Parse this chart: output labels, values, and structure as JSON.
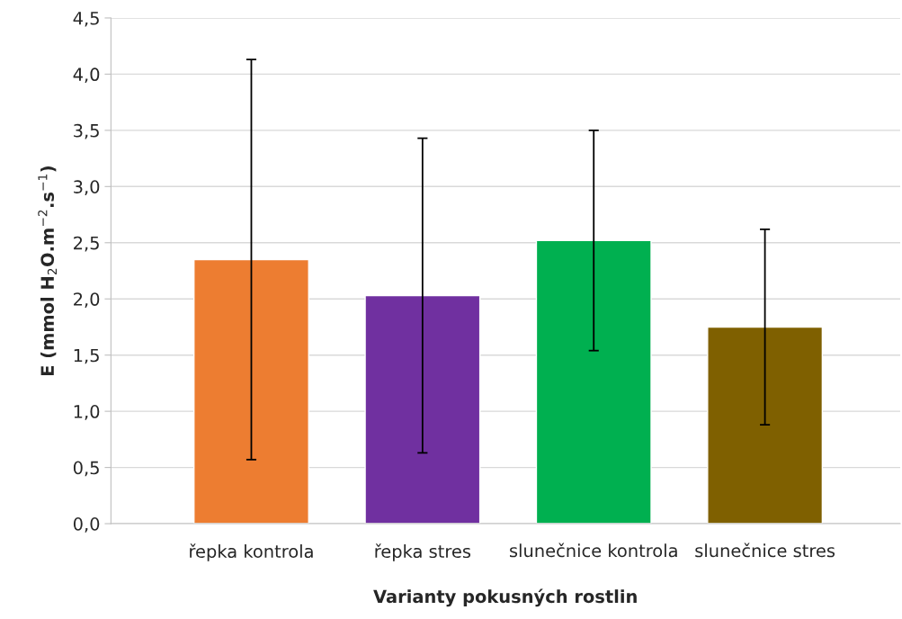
{
  "chart_data": {
    "type": "bar",
    "xlabel": "Varianty pokusných rostlin",
    "ylabel": "E (mmol H$_{2}$O.m$^{−2}$.s$^{−1}$)",
    "categories": [
      "řepka kontrola",
      "řepka stres",
      "slunečnice kontrola",
      "slunečnice stres"
    ],
    "values": [
      2.35,
      2.03,
      2.52,
      1.75
    ],
    "errors": [
      1.78,
      1.4,
      0.98,
      0.87
    ],
    "colors": [
      "#ed7d31",
      "#7030a0",
      "#00b050",
      "#7f6000"
    ],
    "ylim": [
      0,
      4.5
    ],
    "yticks": [
      {
        "value": 0,
        "label": "0,0"
      },
      {
        "value": 0.5,
        "label": "0,5"
      },
      {
        "value": 1,
        "label": "1,0"
      },
      {
        "value": 1.5,
        "label": "1,5"
      },
      {
        "value": 2,
        "label": "2,0"
      },
      {
        "value": 2.5,
        "label": "2,5"
      },
      {
        "value": 3,
        "label": "3,0"
      },
      {
        "value": 3.5,
        "label": "3,5"
      },
      {
        "value": 4,
        "label": "4,0"
      },
      {
        "value": 4.5,
        "label": "4,5"
      }
    ],
    "grid": "y",
    "legend": false
  }
}
